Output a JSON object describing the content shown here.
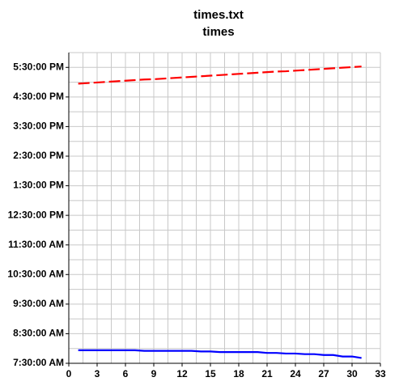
{
  "chart_data": {
    "type": "line",
    "title": "times.txt",
    "subtitle": "times",
    "x": [
      1,
      2,
      3,
      4,
      5,
      6,
      7,
      8,
      9,
      10,
      11,
      12,
      13,
      14,
      15,
      16,
      17,
      18,
      19,
      20,
      21,
      22,
      23,
      24,
      25,
      26,
      27,
      28,
      29,
      30,
      31
    ],
    "series": [
      {
        "color": "#ff0000",
        "dash": true,
        "values": [
          16.95,
          16.97,
          16.99,
          17.01,
          17.03,
          17.05,
          17.07,
          17.09,
          17.1,
          17.12,
          17.14,
          17.16,
          17.18,
          17.2,
          17.22,
          17.24,
          17.26,
          17.28,
          17.3,
          17.32,
          17.34,
          17.36,
          17.37,
          17.39,
          17.41,
          17.43,
          17.45,
          17.47,
          17.49,
          17.51,
          17.53
        ]
      },
      {
        "color": "#0000ff",
        "dash": false,
        "values": [
          7.94,
          7.94,
          7.94,
          7.94,
          7.94,
          7.94,
          7.94,
          7.92,
          7.92,
          7.92,
          7.92,
          7.92,
          7.92,
          7.9,
          7.9,
          7.88,
          7.88,
          7.88,
          7.88,
          7.88,
          7.85,
          7.85,
          7.83,
          7.83,
          7.81,
          7.81,
          7.78,
          7.78,
          7.73,
          7.73,
          7.68
        ]
      }
    ],
    "xlim": [
      0,
      33
    ],
    "xticks": [
      0,
      3,
      6,
      9,
      12,
      15,
      18,
      21,
      24,
      27,
      30,
      33
    ],
    "xminorticks": [
      1.5,
      4.5,
      7.5,
      10.5,
      13.5,
      16.5,
      19.5,
      22.5,
      25.5,
      28.5,
      31.5
    ],
    "ylim": [
      7.5,
      18
    ],
    "yticks": [
      {
        "value": 7.5,
        "label": "7:30:00 AM"
      },
      {
        "value": 8.5,
        "label": "8:30:00 AM"
      },
      {
        "value": 9.5,
        "label": "9:30:00 AM"
      },
      {
        "value": 10.5,
        "label": "10:30:00 AM"
      },
      {
        "value": 11.5,
        "label": "11:30:00 AM"
      },
      {
        "value": 12.5,
        "label": "12:30:00 PM"
      },
      {
        "value": 13.5,
        "label": "1:30:00 PM"
      },
      {
        "value": 14.5,
        "label": "2:30:00 PM"
      },
      {
        "value": 15.5,
        "label": "3:30:00 PM"
      },
      {
        "value": 16.5,
        "label": "4:30:00 PM"
      },
      {
        "value": 17.5,
        "label": "5:30:00 PM"
      }
    ],
    "yminorticks": [
      8,
      9,
      10,
      11,
      12,
      13,
      14,
      15,
      16,
      17,
      18
    ],
    "grid": true
  }
}
